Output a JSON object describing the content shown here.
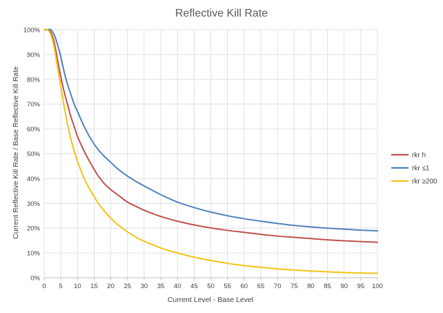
{
  "chart_data": {
    "type": "line",
    "title": "Reflective Kill Rate",
    "xlabel": "Current Level - Base Level",
    "ylabel": "Current Reflective Kill Rate / Base Reflective Kill Rate",
    "xlim": [
      0,
      100
    ],
    "ylim": [
      0,
      1
    ],
    "x_ticks": [
      0,
      5,
      10,
      15,
      20,
      25,
      30,
      35,
      40,
      45,
      50,
      55,
      60,
      65,
      70,
      75,
      80,
      85,
      90,
      95,
      100
    ],
    "x_tick_labels": [
      "0",
      "5",
      "10",
      "15",
      "20",
      "25",
      "30",
      "35",
      "40",
      "45",
      "50",
      "55",
      "60",
      "65",
      "70",
      "75",
      "80",
      "85",
      "90",
      "95",
      "100"
    ],
    "y_ticks": [
      0,
      0.1,
      0.2,
      0.3,
      0.4,
      0.5,
      0.6,
      0.7,
      0.8,
      0.9,
      1.0
    ],
    "y_tick_labels": [
      "0%",
      "10%",
      "20%",
      "30%",
      "40%",
      "50%",
      "60%",
      "70%",
      "80%",
      "90%",
      "100%"
    ],
    "grid": true,
    "legend_position": "right",
    "x": [
      0,
      1,
      2,
      3,
      4,
      5,
      6,
      7,
      8,
      9,
      10,
      12,
      14,
      16,
      18,
      20,
      22,
      25,
      28,
      30,
      35,
      40,
      45,
      50,
      55,
      60,
      65,
      70,
      75,
      80,
      85,
      90,
      95,
      100
    ],
    "series": [
      {
        "name": "rkr h",
        "color": "#c0504d",
        "values": [
          1.0,
          1.0,
          0.99,
          0.95,
          0.88,
          0.81,
          0.75,
          0.7,
          0.65,
          0.61,
          0.57,
          0.51,
          0.46,
          0.415,
          0.38,
          0.355,
          0.335,
          0.305,
          0.285,
          0.272,
          0.247,
          0.228,
          0.213,
          0.201,
          0.191,
          0.183,
          0.175,
          0.168,
          0.163,
          0.158,
          0.153,
          0.149,
          0.146,
          0.143
        ]
      },
      {
        "name": "rkr ≤1",
        "color": "#4f81bd",
        "values": [
          1.0,
          1.0,
          1.0,
          0.98,
          0.94,
          0.89,
          0.83,
          0.78,
          0.74,
          0.7,
          0.67,
          0.61,
          0.56,
          0.52,
          0.49,
          0.465,
          0.44,
          0.41,
          0.385,
          0.37,
          0.335,
          0.305,
          0.283,
          0.265,
          0.25,
          0.238,
          0.228,
          0.219,
          0.211,
          0.205,
          0.2,
          0.196,
          0.192,
          0.189
        ]
      },
      {
        "name": "rkr ≥200",
        "color": "#f2c314",
        "values": [
          1.0,
          1.0,
          0.98,
          0.93,
          0.85,
          0.77,
          0.69,
          0.62,
          0.56,
          0.51,
          0.47,
          0.4,
          0.35,
          0.305,
          0.27,
          0.24,
          0.215,
          0.185,
          0.16,
          0.147,
          0.12,
          0.1,
          0.083,
          0.07,
          0.058,
          0.049,
          0.042,
          0.036,
          0.031,
          0.027,
          0.024,
          0.021,
          0.019,
          0.018
        ]
      }
    ]
  }
}
